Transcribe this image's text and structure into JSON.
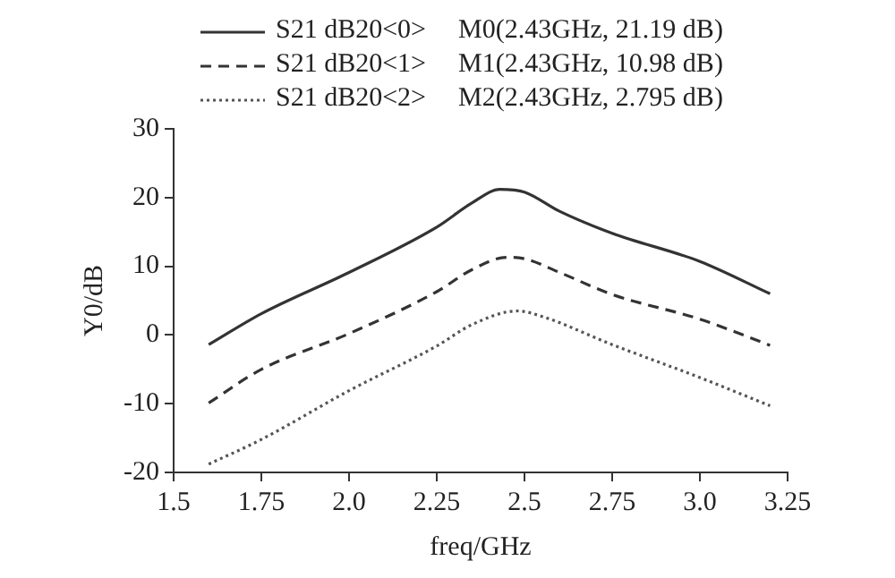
{
  "chart_data": {
    "type": "line",
    "xlabel": "freq/GHz",
    "ylabel": "Y0/dB",
    "xlim": [
      1.5,
      3.25
    ],
    "xticks": [
      1.5,
      1.75,
      {
        "value": 2,
        "label": "2.0"
      },
      2.25,
      2.5,
      2.75,
      {
        "value": 3,
        "label": "3.0"
      },
      3.25
    ],
    "ylim": [
      -20,
      30
    ],
    "yticks": [
      -20,
      -10,
      0,
      10,
      20,
      30
    ],
    "grid": false,
    "legend": "top left",
    "marker": "none",
    "annotations": [
      "M0(2.43GHz, 21.19 dB)",
      "M1(2.43GHz, 10.98 dB)",
      "M2(2.43GHz, 2.795 dB)"
    ],
    "series": [
      {
        "name": "S21 dB20<0>",
        "color": "#333333",
        "line_style": "solid",
        "x": [
          1.6,
          1.75,
          2.0,
          2.25,
          2.35,
          2.43,
          2.5,
          2.6,
          2.75,
          3.0,
          3.2
        ],
        "values": [
          -1.4,
          3.1,
          9.1,
          15.7,
          19.2,
          21.2,
          20.8,
          18,
          14.8,
          10.7,
          6
        ]
      },
      {
        "name": "S21 dB20<1>",
        "color": "#333333",
        "line_style": "dashed",
        "x": [
          1.6,
          1.75,
          2.0,
          2.25,
          2.35,
          2.45,
          2.5,
          2.6,
          2.75,
          3.0,
          3.2
        ],
        "values": [
          -9.9,
          -5,
          0.2,
          6.3,
          9.5,
          11.3,
          11.1,
          9.1,
          5.9,
          2.3,
          -1.5
        ]
      },
      {
        "name": "S21 dB20<2>",
        "color": "#555555",
        "line_style": "dotted",
        "x": [
          1.6,
          1.75,
          2.0,
          2.25,
          2.35,
          2.48,
          2.55,
          2.75,
          3.0,
          3.2
        ],
        "values": [
          -18.8,
          -15.2,
          -8.1,
          -1.6,
          1.5,
          3.5,
          2.7,
          -1.4,
          -6.2,
          -10.3
        ]
      }
    ]
  }
}
